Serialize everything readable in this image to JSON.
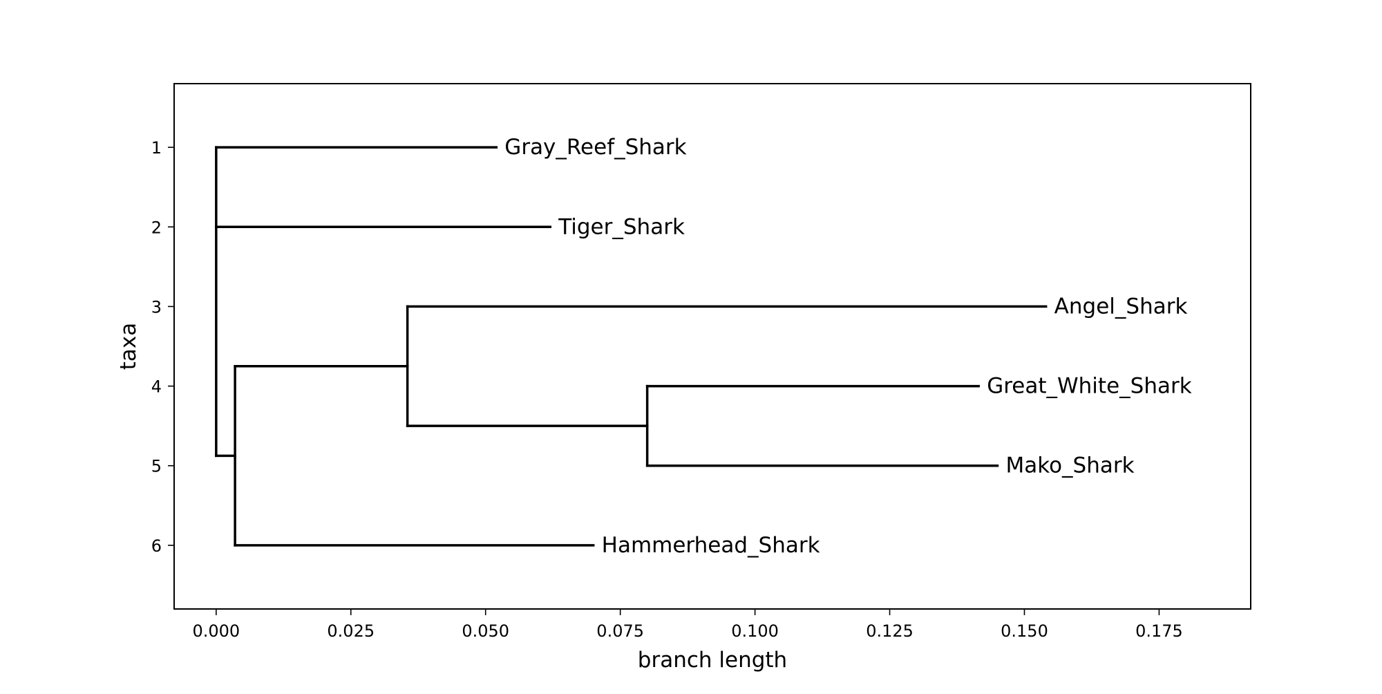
{
  "chart_data": {
    "type": "dendrogram",
    "title": "",
    "xlabel": "branch length",
    "ylabel": "taxa",
    "xlim": [
      -0.0078,
      0.192
    ],
    "ylim": [
      6.8,
      0.2
    ],
    "x_ticks": [
      0.0,
      0.025,
      0.05,
      0.075,
      0.1,
      0.125,
      0.15,
      0.175
    ],
    "x_tick_labels": [
      "0.000",
      "0.025",
      "0.050",
      "0.075",
      "0.100",
      "0.125",
      "0.150",
      "0.175"
    ],
    "y_ticks": [
      1,
      2,
      3,
      4,
      5,
      6
    ],
    "y_tick_labels": [
      "1",
      "2",
      "3",
      "4",
      "5",
      "6"
    ],
    "grid": false,
    "leaves": [
      {
        "name": "Gray_Reef_Shark",
        "y": 1,
        "x": 0.052
      },
      {
        "name": "Tiger_Shark",
        "y": 2,
        "x": 0.062
      },
      {
        "name": "Angel_Shark",
        "y": 3,
        "x": 0.154
      },
      {
        "name": "Great_White_Shark",
        "y": 4,
        "x": 0.1415
      },
      {
        "name": "Mako_Shark",
        "y": 5,
        "x": 0.145
      },
      {
        "name": "Hammerhead_Shark",
        "y": 6,
        "x": 0.07
      }
    ],
    "internal_nodes": [
      {
        "id": "root",
        "x": 0.0,
        "y": 4.875,
        "children": [
          "Gray_Reef_Shark",
          "Tiger_Shark",
          "n1"
        ]
      },
      {
        "id": "n1",
        "x": 0.0035,
        "y": 4.875,
        "children": [
          "n2",
          "Hammerhead_Shark"
        ]
      },
      {
        "id": "n2",
        "x": 0.0355,
        "y": 3.75,
        "children": [
          "Angel_Shark",
          "n3"
        ]
      },
      {
        "id": "n3",
        "x": 0.08,
        "y": 4.5,
        "children": [
          "Great_White_Shark",
          "Mako_Shark"
        ]
      }
    ]
  }
}
